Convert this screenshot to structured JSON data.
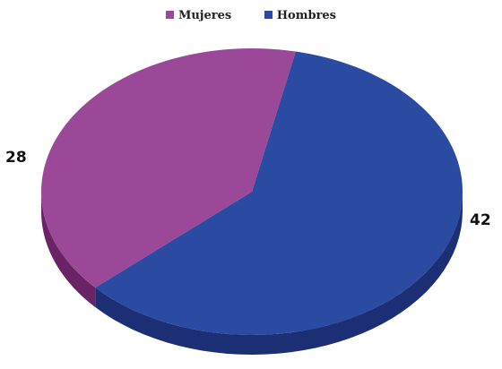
{
  "chart_data": {
    "type": "pie",
    "categories": [
      "Mujeres",
      "Hombres"
    ],
    "values": [
      28,
      42
    ],
    "colors": [
      "#9b4898",
      "#2b4aa1"
    ],
    "side_colors": [
      "#6a2466",
      "#1c2f75"
    ],
    "title": "",
    "legend": {
      "position": "top",
      "entries": [
        "Mujeres",
        "Hombres"
      ]
    },
    "data_labels": [
      "28",
      "42"
    ],
    "style": "3d"
  }
}
